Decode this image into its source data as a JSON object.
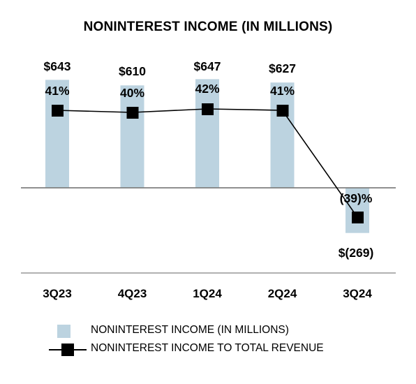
{
  "title": "NONINTEREST INCOME (IN MILLIONS)",
  "chart_data": {
    "type": "bar",
    "title": "NONINTEREST INCOME (IN MILLIONS)",
    "categories": [
      "3Q23",
      "4Q23",
      "1Q24",
      "2Q24",
      "3Q24"
    ],
    "series": [
      {
        "name": "NONINTEREST INCOME (IN MILLIONS)",
        "type": "bar",
        "values": [
          643,
          610,
          647,
          627,
          -269
        ],
        "labels": [
          "$643",
          "$610",
          "$647",
          "$627",
          "$(269)"
        ],
        "color": "#bcd3e0"
      },
      {
        "name": "NONINTEREST INCOME TO TOTAL REVENUE",
        "type": "line",
        "values": [
          41,
          40,
          42,
          41,
          -39
        ],
        "labels": [
          "41%",
          "40%",
          "42%",
          "41%",
          "(39)%"
        ],
        "color": "#000000"
      }
    ],
    "legend_position": "bottom",
    "grid": false
  },
  "legend": {
    "items": [
      {
        "label": "NONINTEREST INCOME (IN MILLIONS)",
        "kind": "bar",
        "color": "#bcd3e0"
      },
      {
        "label": "NONINTEREST INCOME TO TOTAL REVENUE",
        "kind": "line-marker",
        "color": "#000000"
      }
    ]
  }
}
